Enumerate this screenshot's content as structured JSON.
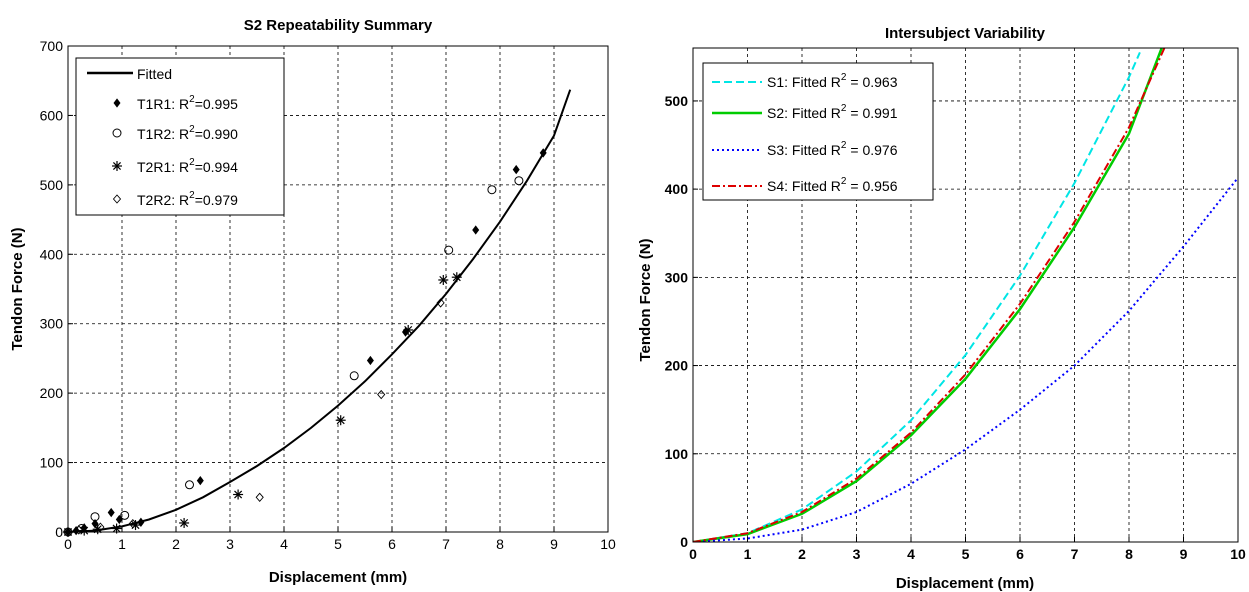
{
  "chart_data": [
    {
      "type": "scatter",
      "title": "S2 Repeatability Summary",
      "xlabel": "Displacement (mm)",
      "ylabel": "Tendon Force (N)",
      "xlim": [
        0,
        10
      ],
      "ylim": [
        0,
        700
      ],
      "xticks": [
        "0",
        "1",
        "2",
        "3",
        "4",
        "5",
        "6",
        "7",
        "8",
        "9",
        "10"
      ],
      "yticks": [
        "0",
        "100",
        "200",
        "300",
        "400",
        "500",
        "600",
        "700"
      ],
      "grid": true,
      "legend_position": "top-left",
      "fitted": {
        "name": "Fitted",
        "x": [
          0,
          0.5,
          1,
          1.5,
          2,
          2.5,
          3,
          3.5,
          4,
          4.5,
          5,
          5.5,
          6,
          6.5,
          7,
          7.5,
          8,
          8.5,
          9,
          9.3
        ],
        "y": [
          0,
          2,
          8,
          18,
          32,
          50,
          72,
          95,
          121,
          150,
          182,
          217,
          256,
          297,
          343,
          393,
          447,
          506,
          571,
          637
        ]
      },
      "series": [
        {
          "name": "T1R1",
          "legend_prefix": "T1R1: R",
          "legend_value": "=0.995",
          "marker": "diamond-filled",
          "x": [
            0.0,
            0.15,
            0.3,
            0.5,
            0.8,
            0.95,
            1.35,
            2.45,
            5.6,
            6.25,
            7.55,
            8.3,
            8.8
          ],
          "y": [
            0,
            2,
            6,
            12,
            28,
            18,
            14,
            74,
            247,
            288,
            435,
            522,
            546
          ]
        },
        {
          "name": "T1R2",
          "legend_prefix": "T1R2: R",
          "legend_value": "=0.990",
          "marker": "circle-open",
          "x": [
            0.0,
            0.25,
            0.5,
            1.05,
            2.25,
            5.3,
            7.05,
            7.85,
            8.35
          ],
          "y": [
            0,
            5,
            22,
            24,
            68,
            225,
            406,
            493,
            506
          ]
        },
        {
          "name": "T2R1",
          "legend_prefix": "T2R1: R",
          "legend_value": "=0.994",
          "marker": "asterisk",
          "x": [
            0.0,
            0.3,
            0.55,
            0.9,
            1.25,
            2.15,
            3.15,
            5.05,
            6.3,
            6.95,
            7.2
          ],
          "y": [
            0,
            2,
            4,
            5,
            10,
            13,
            54,
            161,
            291,
            363,
            367
          ]
        },
        {
          "name": "T2R2",
          "legend_prefix": "T2R2: R",
          "legend_value": "=0.979",
          "marker": "diamond-open",
          "x": [
            0.0,
            0.2,
            0.6,
            1.2,
            3.55,
            5.8,
            6.9
          ],
          "y": [
            0,
            3,
            7,
            12,
            50,
            198,
            330
          ]
        }
      ]
    },
    {
      "type": "line",
      "title": "Intersubject Variability",
      "xlabel": "Displacement (mm)",
      "ylabel": "Tendon Force (N)",
      "xlim": [
        0,
        10
      ],
      "ylim": [
        0,
        560
      ],
      "xticks": [
        "0",
        "1",
        "2",
        "3",
        "4",
        "5",
        "6",
        "7",
        "8",
        "9",
        "10"
      ],
      "yticks": [
        "0",
        "100",
        "200",
        "300",
        "400",
        "500"
      ],
      "grid": true,
      "legend_position": "top-left",
      "series": [
        {
          "name": "S1",
          "legend_prefix": "S1: Fitted R",
          "legend_value": " = 0.963",
          "color": "#00e5e5",
          "style": "dashed",
          "x": [
            0,
            1,
            2,
            3,
            4,
            5,
            6,
            7,
            8,
            8.2
          ],
          "y": [
            0,
            10,
            37,
            80,
            138,
            212,
            302,
            407,
            527,
            555
          ]
        },
        {
          "name": "S2",
          "legend_prefix": "S2: Fitted R",
          "legend_value": " = 0.991",
          "color": "#00cc00",
          "style": "solid",
          "x": [
            0,
            1,
            2,
            3,
            4,
            5,
            6,
            7,
            8,
            8.6
          ],
          "y": [
            0,
            9,
            32,
            69,
            121,
            185,
            264,
            357,
            463,
            560
          ]
        },
        {
          "name": "S3",
          "legend_prefix": "S3: Fitted R",
          "legend_value": " = 0.976",
          "color": "#0000ff",
          "style": "dotted",
          "x": [
            0,
            1,
            2,
            3,
            4,
            5,
            6,
            7,
            8,
            9,
            10
          ],
          "y": [
            0,
            4,
            14,
            34,
            66,
            105,
            150,
            200,
            262,
            335,
            413
          ]
        },
        {
          "name": "S4",
          "legend_prefix": "S4: Fitted R",
          "legend_value": " = 0.956",
          "color": "#dd0000",
          "style": "dashdot",
          "x": [
            0,
            1,
            2,
            3,
            4,
            5,
            6,
            7,
            8,
            8.65
          ],
          "y": [
            0,
            10,
            34,
            72,
            124,
            190,
            270,
            363,
            470,
            560
          ]
        }
      ]
    }
  ]
}
